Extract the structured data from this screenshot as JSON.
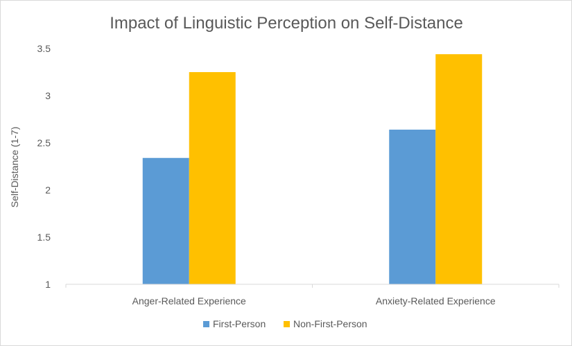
{
  "chart_data": {
    "type": "bar",
    "title": "Impact of Linguistic Perception on Self-Distance",
    "xlabel": "",
    "ylabel": "Self-Distance (1-7)",
    "categories": [
      "Anger-Related Experience",
      "Anxiety-Related Experience"
    ],
    "series": [
      {
        "name": "First-Person",
        "values": [
          2.34,
          2.64
        ],
        "color": "#5b9bd5"
      },
      {
        "name": "Non-First-Person",
        "values": [
          3.25,
          3.44
        ],
        "color": "#ffc000"
      }
    ],
    "ylim": [
      1,
      3.5
    ],
    "yticks": [
      1,
      1.5,
      2,
      2.5,
      3,
      3.5
    ],
    "ytick_labels": [
      "1",
      "1.5",
      "2",
      "2.5",
      "3",
      "3.5"
    ],
    "grid": false,
    "legend_position": "bottom"
  }
}
